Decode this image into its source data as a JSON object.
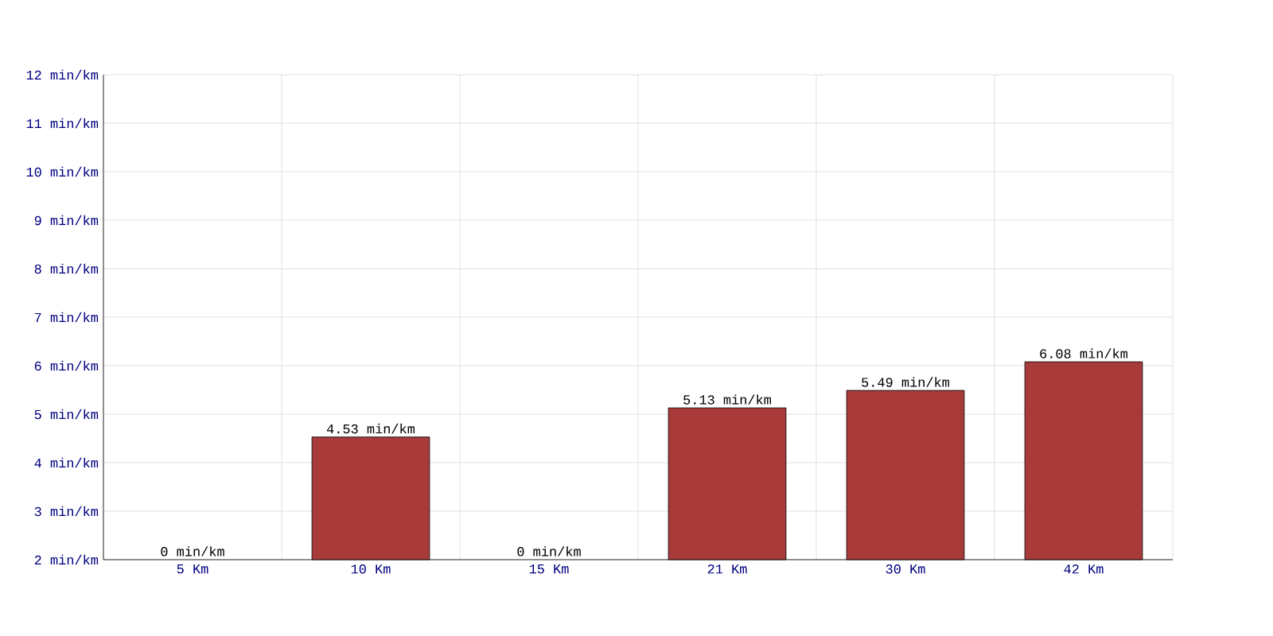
{
  "chart_data": {
    "type": "bar",
    "categories": [
      "5 Km",
      "10 Km",
      "15 Km",
      "21 Km",
      "30 Km",
      "42 Km"
    ],
    "values": [
      null,
      4.53,
      null,
      5.13,
      5.49,
      6.08
    ],
    "value_labels": [
      "0 min/km",
      "4.53 min/km",
      "0 min/km",
      "5.13 min/km",
      "5.49 min/km",
      "6.08 min/km"
    ],
    "color": "#a83a3a",
    "ylim": [
      2,
      12
    ],
    "yticks": [
      {
        "value": 2,
        "label": "2 min/km"
      },
      {
        "value": 3,
        "label": "3 min/km"
      },
      {
        "value": 4,
        "label": "4 min/km"
      },
      {
        "value": 5,
        "label": "5 min/km"
      },
      {
        "value": 6,
        "label": "6 min/km"
      },
      {
        "value": 7,
        "label": "7 min/km"
      },
      {
        "value": 8,
        "label": "8 min/km"
      },
      {
        "value": 9,
        "label": "9 min/km"
      },
      {
        "value": 10,
        "label": "10 min/km"
      },
      {
        "value": 11,
        "label": "11 min/km"
      },
      {
        "value": 12,
        "label": "12 min/km"
      }
    ],
    "grid": true
  }
}
